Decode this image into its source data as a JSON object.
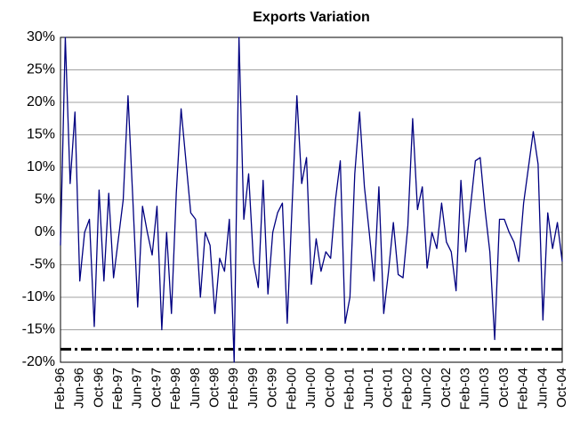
{
  "chart_data": {
    "type": "line",
    "title": "Exports Variation",
    "categories": [
      "Feb-96",
      null,
      null,
      null,
      "Jun-96",
      null,
      null,
      null,
      "Oct-96",
      null,
      null,
      null,
      "Feb-97",
      null,
      null,
      null,
      "Jun-97",
      null,
      null,
      null,
      "Oct-97",
      null,
      null,
      null,
      "Feb-98",
      null,
      null,
      null,
      "Jun-98",
      null,
      null,
      null,
      "Oct-98",
      null,
      null,
      null,
      "Feb-99",
      null,
      null,
      null,
      "Jun-99",
      null,
      null,
      null,
      "Oct-99",
      null,
      null,
      null,
      "Feb-00",
      null,
      null,
      null,
      "Jun-00",
      null,
      null,
      null,
      "Oct-00",
      null,
      null,
      null,
      "Feb-01",
      null,
      null,
      null,
      "Jun-01",
      null,
      null,
      null,
      "Oct-01",
      null,
      null,
      null,
      "Feb-02",
      null,
      null,
      null,
      "Jun-02",
      null,
      null,
      null,
      "Oct-02",
      null,
      null,
      null,
      "Feb-03",
      null,
      null,
      null,
      "Jun-03",
      null,
      null,
      null,
      "Oct-03",
      null,
      null,
      null,
      "Feb-04",
      null,
      null,
      null,
      "Jun-04",
      null,
      null,
      null,
      "Oct-04"
    ],
    "values": [
      -2,
      30,
      7.5,
      18.5,
      -7.5,
      0,
      2,
      -14.5,
      6.5,
      -7.5,
      6,
      -7,
      -1,
      5,
      21,
      5,
      -11.5,
      4,
      0,
      -3.5,
      4,
      -15,
      0,
      -12.5,
      6,
      19,
      11,
      3,
      2,
      -10,
      0,
      -2,
      -12.5,
      -4,
      -6,
      2,
      -20,
      30,
      2,
      9,
      -4.5,
      -8.5,
      8,
      -9.5,
      0,
      3,
      4.5,
      -14,
      4,
      21,
      7.5,
      11.5,
      -8,
      -1,
      -6,
      -3,
      -4,
      5,
      11,
      -14,
      -10,
      9,
      18.5,
      7,
      0,
      -7.5,
      7,
      -12.5,
      -6,
      1.5,
      -6.5,
      -7,
      1,
      17.5,
      3.5,
      7,
      -5.5,
      0,
      -2.5,
      4.5,
      -1.5,
      -3,
      -9,
      8,
      -3,
      4,
      11,
      11.5,
      3.5,
      -3,
      -16.5,
      2,
      2,
      0,
      -1.5,
      -4.5,
      4.5,
      10,
      15.5,
      10.5,
      -13.5,
      3,
      -2.5,
      1.5,
      -4.5
    ],
    "color": "#000080",
    "ylim": [
      -20,
      30
    ],
    "yticks": [
      {
        "value": -20,
        "label": "-20%"
      },
      {
        "value": -15,
        "label": "-15%"
      },
      {
        "value": -10,
        "label": "-10%"
      },
      {
        "value": -5,
        "label": "-5%"
      },
      {
        "value": 0,
        "label": "0%"
      },
      {
        "value": 5,
        "label": "5%"
      },
      {
        "value": 10,
        "label": "10%"
      },
      {
        "value": 15,
        "label": "15%"
      },
      {
        "value": 20,
        "label": "20%"
      },
      {
        "value": 25,
        "label": "25%"
      },
      {
        "value": 30,
        "label": "30%"
      }
    ],
    "grid": true,
    "reference_line": -18
  }
}
